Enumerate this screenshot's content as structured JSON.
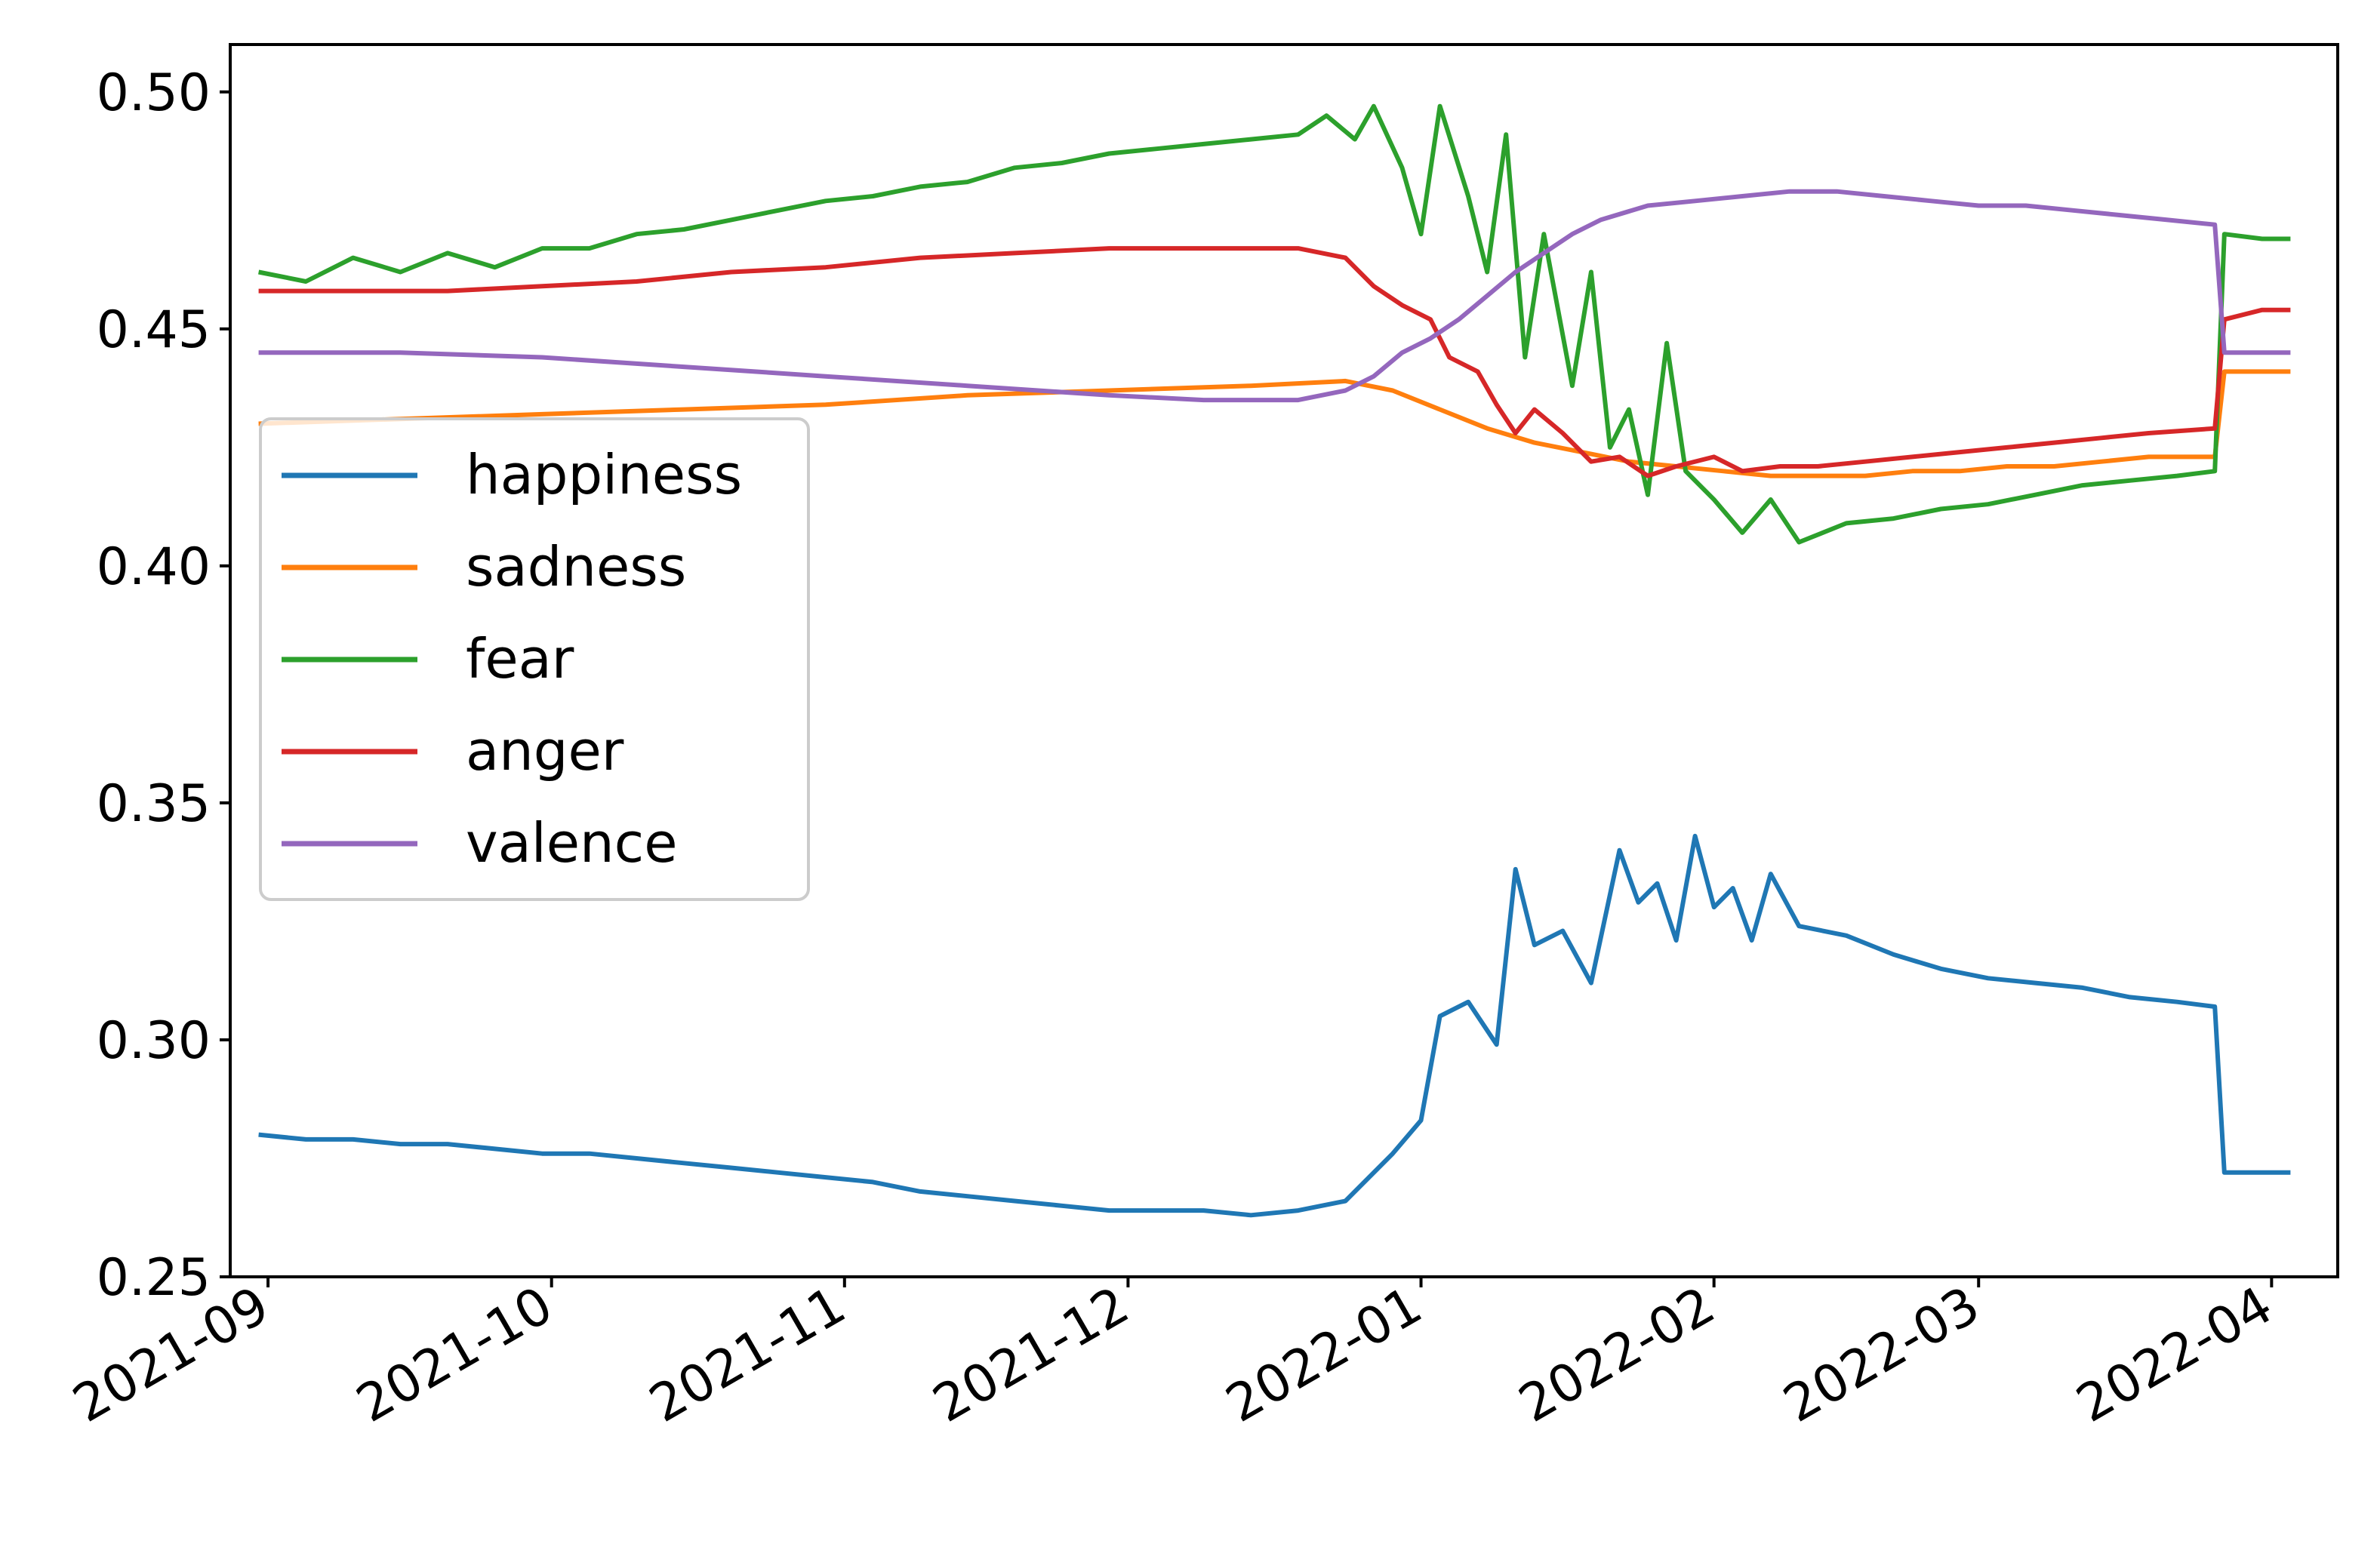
{
  "chart_data": {
    "type": "line",
    "title": "",
    "xlabel": "",
    "ylabel": "",
    "x_range": [
      "2021-08-28",
      "2022-04-08"
    ],
    "ylim": [
      0.25,
      0.51
    ],
    "grid": false,
    "legend_position": "center-left",
    "y_ticks": [
      "0.25",
      "0.30",
      "0.35",
      "0.40",
      "0.45",
      "0.50"
    ],
    "x_ticks": [
      "2021-09",
      "2021-10",
      "2021-11",
      "2021-12",
      "2022-01",
      "2022-02",
      "2022-03",
      "2022-04"
    ],
    "x_tick_dates": [
      "2021-09-01",
      "2021-10-01",
      "2021-11-01",
      "2021-12-01",
      "2022-01-01",
      "2022-02-01",
      "2022-03-01",
      "2022-04-01"
    ],
    "series": [
      {
        "name": "happiness",
        "color": "#1f77b4",
        "points": [
          [
            "2021-08-31",
            0.28
          ],
          [
            "2021-09-05",
            0.279
          ],
          [
            "2021-09-10",
            0.279
          ],
          [
            "2021-09-15",
            0.278
          ],
          [
            "2021-09-20",
            0.278
          ],
          [
            "2021-09-25",
            0.277
          ],
          [
            "2021-09-30",
            0.276
          ],
          [
            "2021-10-05",
            0.276
          ],
          [
            "2021-10-10",
            0.275
          ],
          [
            "2021-10-15",
            0.274
          ],
          [
            "2021-10-20",
            0.273
          ],
          [
            "2021-10-25",
            0.272
          ],
          [
            "2021-10-30",
            0.271
          ],
          [
            "2021-11-04",
            0.27
          ],
          [
            "2021-11-09",
            0.268
          ],
          [
            "2021-11-14",
            0.267
          ],
          [
            "2021-11-19",
            0.266
          ],
          [
            "2021-11-24",
            0.265
          ],
          [
            "2021-11-29",
            0.264
          ],
          [
            "2021-12-04",
            0.264
          ],
          [
            "2021-12-09",
            0.264
          ],
          [
            "2021-12-14",
            0.263
          ],
          [
            "2021-12-19",
            0.264
          ],
          [
            "2021-12-24",
            0.266
          ],
          [
            "2021-12-29",
            0.276
          ],
          [
            "2022-01-01",
            0.283
          ],
          [
            "2022-01-03",
            0.305
          ],
          [
            "2022-01-06",
            0.308
          ],
          [
            "2022-01-09",
            0.299
          ],
          [
            "2022-01-11",
            0.336
          ],
          [
            "2022-01-13",
            0.32
          ],
          [
            "2022-01-16",
            0.323
          ],
          [
            "2022-01-19",
            0.312
          ],
          [
            "2022-01-22",
            0.34
          ],
          [
            "2022-01-24",
            0.329
          ],
          [
            "2022-01-26",
            0.333
          ],
          [
            "2022-01-28",
            0.321
          ],
          [
            "2022-01-30",
            0.343
          ],
          [
            "2022-02-01",
            0.328
          ],
          [
            "2022-02-03",
            0.332
          ],
          [
            "2022-02-05",
            0.321
          ],
          [
            "2022-02-07",
            0.335
          ],
          [
            "2022-02-10",
            0.324
          ],
          [
            "2022-02-15",
            0.322
          ],
          [
            "2022-02-20",
            0.318
          ],
          [
            "2022-02-25",
            0.315
          ],
          [
            "2022-03-02",
            0.313
          ],
          [
            "2022-03-07",
            0.312
          ],
          [
            "2022-03-12",
            0.311
          ],
          [
            "2022-03-17",
            0.309
          ],
          [
            "2022-03-22",
            0.308
          ],
          [
            "2022-03-26",
            0.307
          ],
          [
            "2022-03-27",
            0.272
          ],
          [
            "2022-03-31",
            0.272
          ],
          [
            "2022-04-03",
            0.272
          ]
        ]
      },
      {
        "name": "sadness",
        "color": "#ff7f0e",
        "points": [
          [
            "2021-08-31",
            0.43
          ],
          [
            "2021-09-15",
            0.431
          ],
          [
            "2021-09-30",
            0.432
          ],
          [
            "2021-10-15",
            0.433
          ],
          [
            "2021-10-30",
            0.434
          ],
          [
            "2021-11-14",
            0.436
          ],
          [
            "2021-11-29",
            0.437
          ],
          [
            "2021-12-14",
            0.438
          ],
          [
            "2021-12-24",
            0.439
          ],
          [
            "2021-12-29",
            0.437
          ],
          [
            "2022-01-03",
            0.433
          ],
          [
            "2022-01-08",
            0.429
          ],
          [
            "2022-01-13",
            0.426
          ],
          [
            "2022-01-18",
            0.424
          ],
          [
            "2022-01-23",
            0.422
          ],
          [
            "2022-01-28",
            0.421
          ],
          [
            "2022-02-02",
            0.42
          ],
          [
            "2022-02-07",
            0.419
          ],
          [
            "2022-02-12",
            0.419
          ],
          [
            "2022-02-17",
            0.419
          ],
          [
            "2022-02-22",
            0.42
          ],
          [
            "2022-02-27",
            0.42
          ],
          [
            "2022-03-04",
            0.421
          ],
          [
            "2022-03-09",
            0.421
          ],
          [
            "2022-03-14",
            0.422
          ],
          [
            "2022-03-19",
            0.423
          ],
          [
            "2022-03-26",
            0.423
          ],
          [
            "2022-03-27",
            0.441
          ],
          [
            "2022-04-03",
            0.441
          ]
        ]
      },
      {
        "name": "fear",
        "color": "#2ca02c",
        "points": [
          [
            "2021-08-31",
            0.462
          ],
          [
            "2021-09-05",
            0.46
          ],
          [
            "2021-09-10",
            0.465
          ],
          [
            "2021-09-15",
            0.462
          ],
          [
            "2021-09-20",
            0.466
          ],
          [
            "2021-09-25",
            0.463
          ],
          [
            "2021-09-30",
            0.467
          ],
          [
            "2021-10-05",
            0.467
          ],
          [
            "2021-10-10",
            0.47
          ],
          [
            "2021-10-15",
            0.471
          ],
          [
            "2021-10-20",
            0.473
          ],
          [
            "2021-10-25",
            0.475
          ],
          [
            "2021-10-30",
            0.477
          ],
          [
            "2021-11-04",
            0.478
          ],
          [
            "2021-11-09",
            0.48
          ],
          [
            "2021-11-14",
            0.481
          ],
          [
            "2021-11-19",
            0.484
          ],
          [
            "2021-11-24",
            0.485
          ],
          [
            "2021-11-29",
            0.487
          ],
          [
            "2021-12-04",
            0.488
          ],
          [
            "2021-12-09",
            0.489
          ],
          [
            "2021-12-14",
            0.49
          ],
          [
            "2021-12-19",
            0.491
          ],
          [
            "2021-12-22",
            0.495
          ],
          [
            "2021-12-25",
            0.49
          ],
          [
            "2021-12-27",
            0.497
          ],
          [
            "2021-12-30",
            0.484
          ],
          [
            "2022-01-01",
            0.47
          ],
          [
            "2022-01-03",
            0.497
          ],
          [
            "2022-01-06",
            0.478
          ],
          [
            "2022-01-08",
            0.462
          ],
          [
            "2022-01-10",
            0.491
          ],
          [
            "2022-01-12",
            0.444
          ],
          [
            "2022-01-14",
            0.47
          ],
          [
            "2022-01-17",
            0.438
          ],
          [
            "2022-01-19",
            0.462
          ],
          [
            "2022-01-21",
            0.425
          ],
          [
            "2022-01-23",
            0.433
          ],
          [
            "2022-01-25",
            0.415
          ],
          [
            "2022-01-27",
            0.447
          ],
          [
            "2022-01-29",
            0.42
          ],
          [
            "2022-02-01",
            0.414
          ],
          [
            "2022-02-04",
            0.407
          ],
          [
            "2022-02-07",
            0.414
          ],
          [
            "2022-02-10",
            0.405
          ],
          [
            "2022-02-15",
            0.409
          ],
          [
            "2022-02-20",
            0.41
          ],
          [
            "2022-02-25",
            0.412
          ],
          [
            "2022-03-02",
            0.413
          ],
          [
            "2022-03-07",
            0.415
          ],
          [
            "2022-03-12",
            0.417
          ],
          [
            "2022-03-17",
            0.418
          ],
          [
            "2022-03-22",
            0.419
          ],
          [
            "2022-03-26",
            0.42
          ],
          [
            "2022-03-27",
            0.47
          ],
          [
            "2022-03-31",
            0.469
          ],
          [
            "2022-04-03",
            0.469
          ]
        ]
      },
      {
        "name": "anger",
        "color": "#d62728",
        "points": [
          [
            "2021-08-31",
            0.458
          ],
          [
            "2021-09-10",
            0.458
          ],
          [
            "2021-09-20",
            0.458
          ],
          [
            "2021-09-30",
            0.459
          ],
          [
            "2021-10-10",
            0.46
          ],
          [
            "2021-10-20",
            0.462
          ],
          [
            "2021-10-30",
            0.463
          ],
          [
            "2021-11-09",
            0.465
          ],
          [
            "2021-11-19",
            0.466
          ],
          [
            "2021-11-29",
            0.467
          ],
          [
            "2021-12-09",
            0.467
          ],
          [
            "2021-12-19",
            0.467
          ],
          [
            "2021-12-24",
            0.465
          ],
          [
            "2021-12-27",
            0.459
          ],
          [
            "2021-12-30",
            0.455
          ],
          [
            "2022-01-02",
            0.452
          ],
          [
            "2022-01-04",
            0.444
          ],
          [
            "2022-01-07",
            0.441
          ],
          [
            "2022-01-09",
            0.434
          ],
          [
            "2022-01-11",
            0.428
          ],
          [
            "2022-01-13",
            0.433
          ],
          [
            "2022-01-16",
            0.428
          ],
          [
            "2022-01-19",
            0.422
          ],
          [
            "2022-01-22",
            0.423
          ],
          [
            "2022-01-25",
            0.419
          ],
          [
            "2022-01-28",
            0.421
          ],
          [
            "2022-02-01",
            0.423
          ],
          [
            "2022-02-04",
            0.42
          ],
          [
            "2022-02-08",
            0.421
          ],
          [
            "2022-02-12",
            0.421
          ],
          [
            "2022-02-17",
            0.422
          ],
          [
            "2022-02-22",
            0.423
          ],
          [
            "2022-02-27",
            0.424
          ],
          [
            "2022-03-04",
            0.425
          ],
          [
            "2022-03-09",
            0.426
          ],
          [
            "2022-03-14",
            0.427
          ],
          [
            "2022-03-19",
            0.428
          ],
          [
            "2022-03-26",
            0.429
          ],
          [
            "2022-03-27",
            0.452
          ],
          [
            "2022-03-31",
            0.454
          ],
          [
            "2022-04-03",
            0.454
          ]
        ]
      },
      {
        "name": "valence",
        "color": "#9467bd",
        "points": [
          [
            "2021-08-31",
            0.445
          ],
          [
            "2021-09-15",
            0.445
          ],
          [
            "2021-09-30",
            0.444
          ],
          [
            "2021-10-15",
            0.442
          ],
          [
            "2021-10-30",
            0.44
          ],
          [
            "2021-11-14",
            0.438
          ],
          [
            "2021-11-29",
            0.436
          ],
          [
            "2021-12-09",
            0.435
          ],
          [
            "2021-12-19",
            0.435
          ],
          [
            "2021-12-24",
            0.437
          ],
          [
            "2021-12-27",
            0.44
          ],
          [
            "2021-12-30",
            0.445
          ],
          [
            "2022-01-02",
            0.448
          ],
          [
            "2022-01-05",
            0.452
          ],
          [
            "2022-01-08",
            0.457
          ],
          [
            "2022-01-11",
            0.462
          ],
          [
            "2022-01-14",
            0.466
          ],
          [
            "2022-01-17",
            0.47
          ],
          [
            "2022-01-20",
            0.473
          ],
          [
            "2022-01-25",
            0.476
          ],
          [
            "2022-01-30",
            0.477
          ],
          [
            "2022-02-04",
            0.478
          ],
          [
            "2022-02-09",
            0.479
          ],
          [
            "2022-02-14",
            0.479
          ],
          [
            "2022-02-19",
            0.478
          ],
          [
            "2022-02-24",
            0.477
          ],
          [
            "2022-03-01",
            0.476
          ],
          [
            "2022-03-06",
            0.476
          ],
          [
            "2022-03-11",
            0.475
          ],
          [
            "2022-03-16",
            0.474
          ],
          [
            "2022-03-21",
            0.473
          ],
          [
            "2022-03-26",
            0.472
          ],
          [
            "2022-03-27",
            0.445
          ],
          [
            "2022-03-31",
            0.445
          ],
          [
            "2022-04-03",
            0.445
          ]
        ]
      }
    ]
  }
}
